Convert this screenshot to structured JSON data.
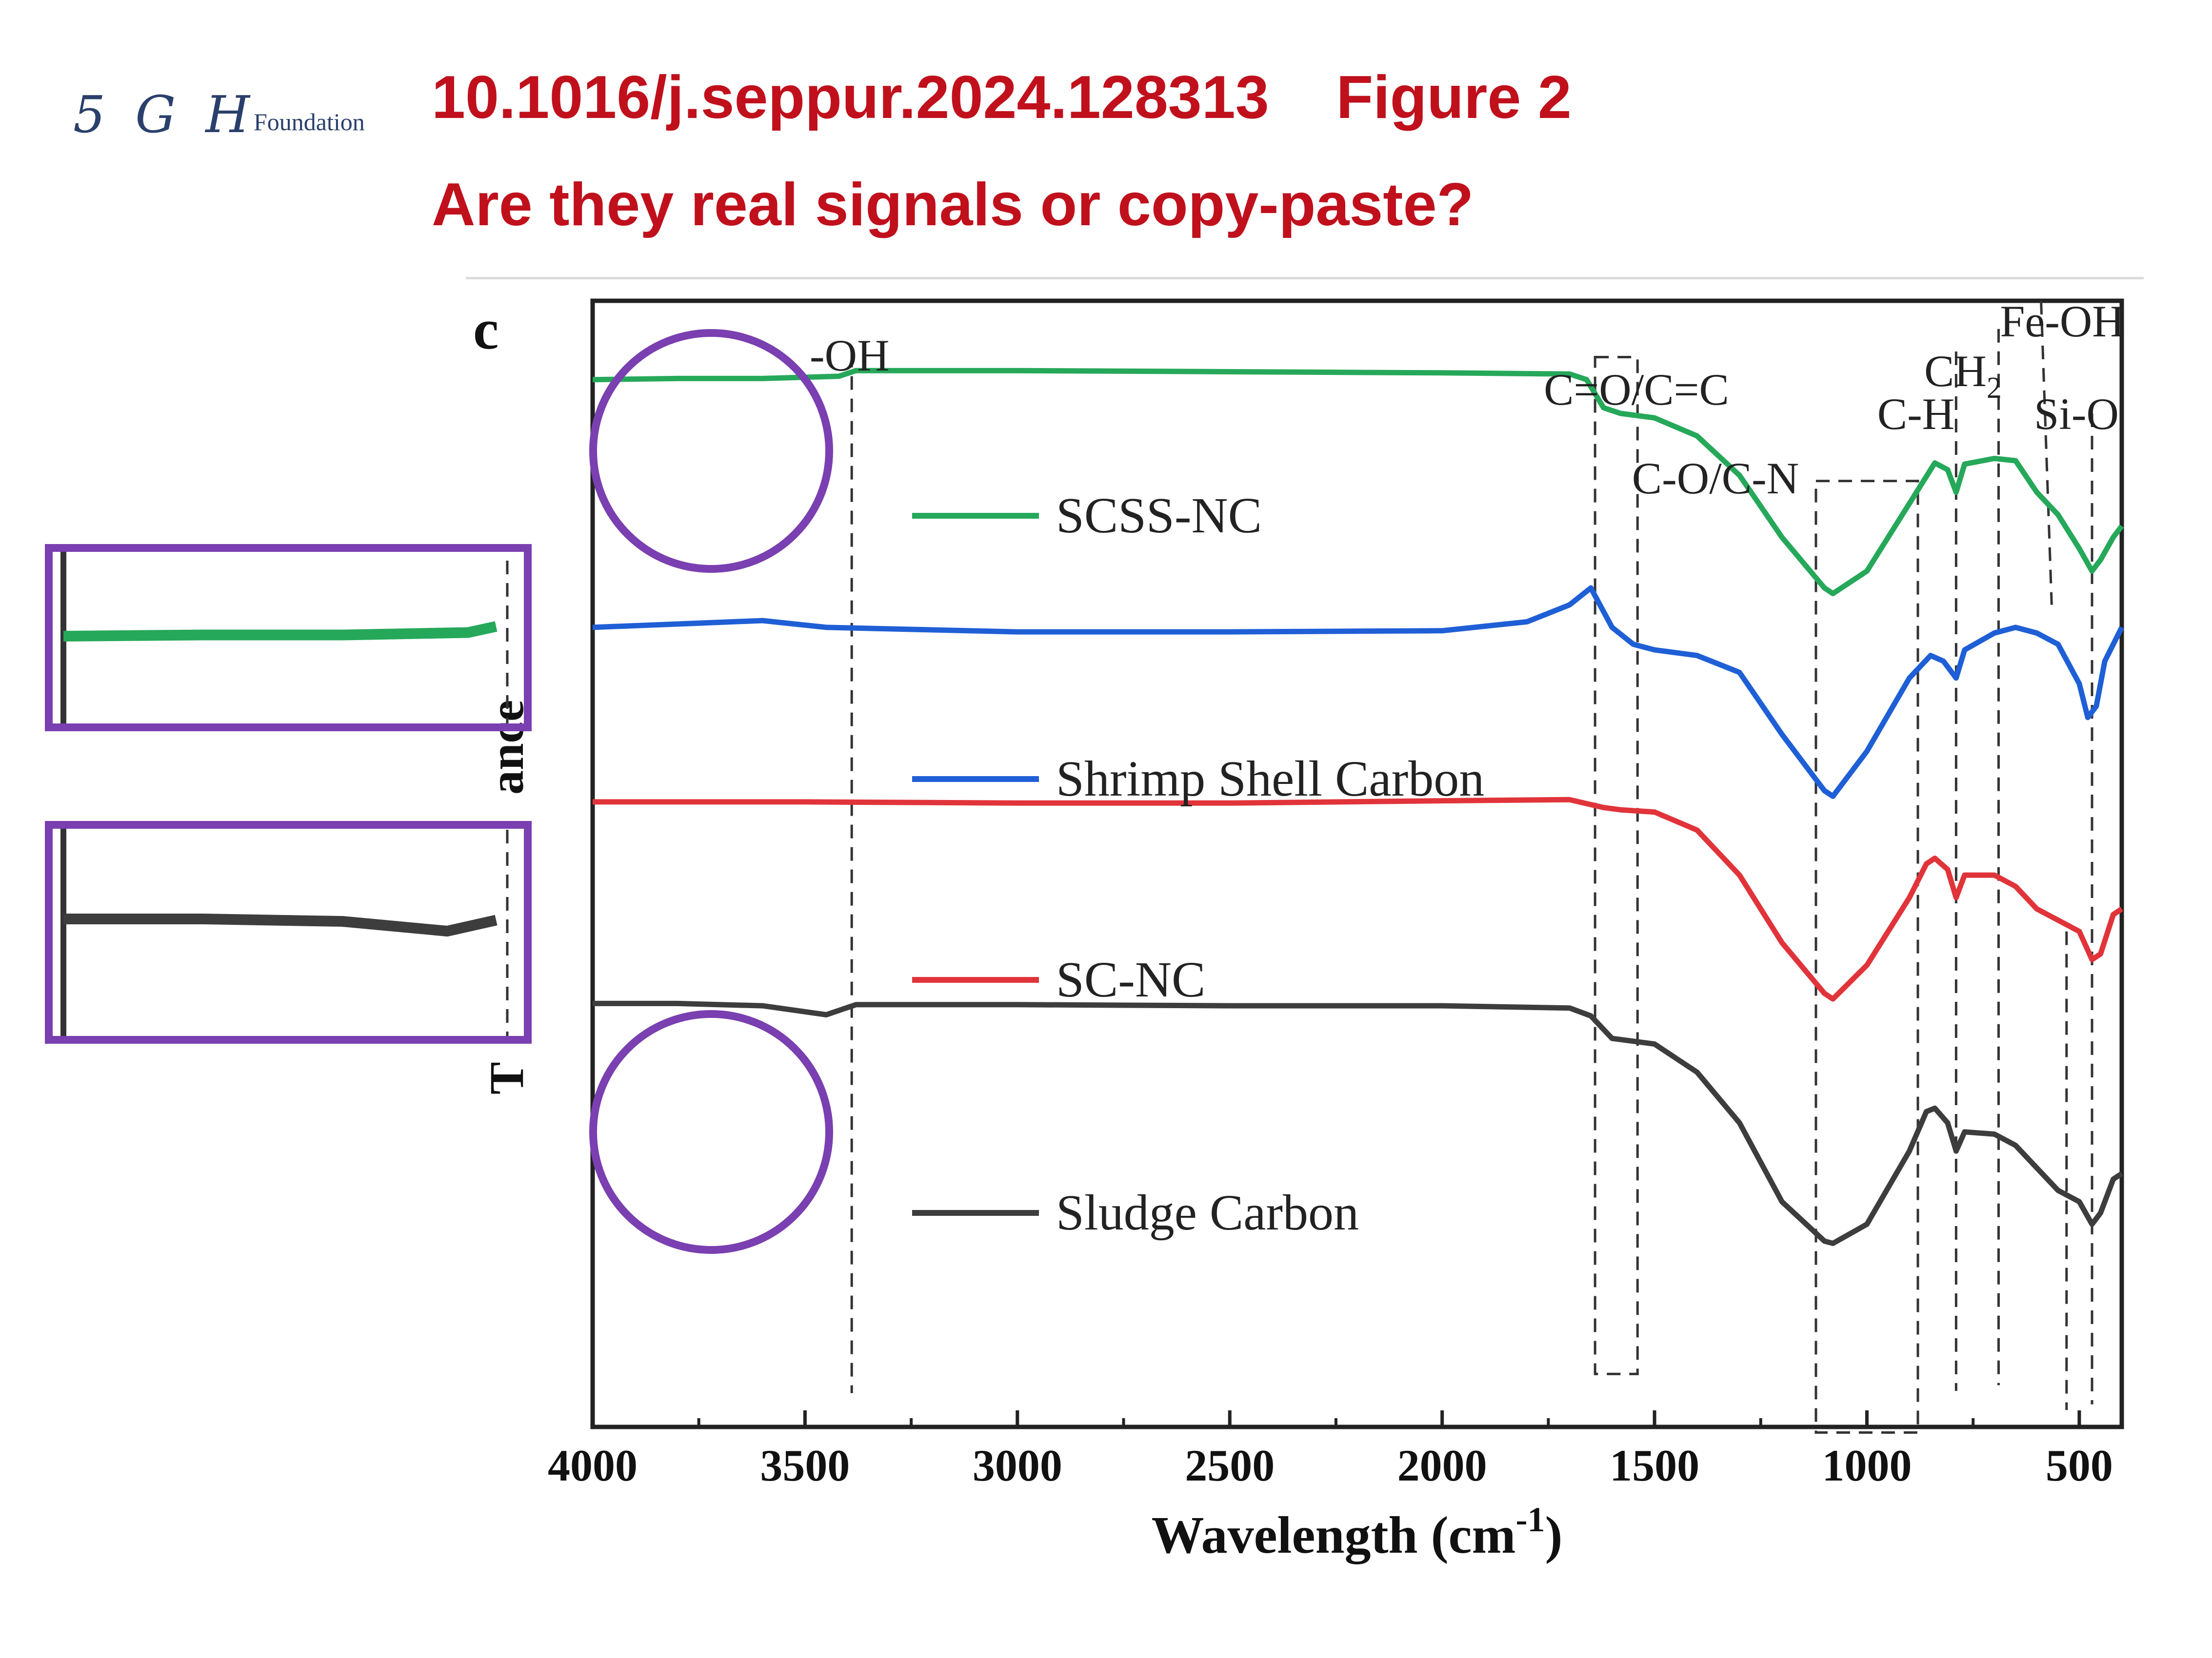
{
  "header": {
    "logo_text": "5 G H",
    "logo_subtext": "Foundation",
    "doi_line": "10.1016/j.seppur.2024.128313    Figure 2",
    "question": "Are they real signals or copy-paste?",
    "accent_color": "#c0101c"
  },
  "chart_data": {
    "type": "line",
    "panel_label": "c",
    "xlabel": "Wavelength (cm",
    "xlabel_sup": "-1",
    "xlabel_close": ")",
    "ylabel_visible": "T",
    "ylabel_fragment": "ance",
    "xlim": [
      4000,
      400
    ],
    "xticks": [
      4000,
      3500,
      3000,
      2500,
      2000,
      1500,
      1000,
      500
    ],
    "series": [
      {
        "name": "SCSS-NC",
        "color": "#26a85a",
        "points": [
          [
            4000,
            0.93
          ],
          [
            3800,
            0.931
          ],
          [
            3600,
            0.931
          ],
          [
            3420,
            0.933
          ],
          [
            3380,
            0.938
          ],
          [
            3000,
            0.938
          ],
          [
            2500,
            0.937
          ],
          [
            2000,
            0.936
          ],
          [
            1700,
            0.935
          ],
          [
            1660,
            0.93
          ],
          [
            1620,
            0.905
          ],
          [
            1580,
            0.9
          ],
          [
            1500,
            0.896
          ],
          [
            1400,
            0.88
          ],
          [
            1300,
            0.845
          ],
          [
            1200,
            0.79
          ],
          [
            1100,
            0.745
          ],
          [
            1080,
            0.74
          ],
          [
            1000,
            0.76
          ],
          [
            900,
            0.82
          ],
          [
            840,
            0.856
          ],
          [
            810,
            0.85
          ],
          [
            790,
            0.83
          ],
          [
            770,
            0.855
          ],
          [
            700,
            0.86
          ],
          [
            650,
            0.858
          ],
          [
            600,
            0.83
          ],
          [
            550,
            0.81
          ],
          [
            500,
            0.78
          ],
          [
            470,
            0.76
          ],
          [
            450,
            0.77
          ],
          [
            420,
            0.79
          ],
          [
            400,
            0.8
          ]
        ]
      },
      {
        "name": "Shrimp Shell Carbon",
        "color": "#1f5fd6",
        "points": [
          [
            4000,
            0.71
          ],
          [
            3800,
            0.713
          ],
          [
            3600,
            0.716
          ],
          [
            3450,
            0.71
          ],
          [
            3000,
            0.706
          ],
          [
            2500,
            0.706
          ],
          [
            2000,
            0.707
          ],
          [
            1800,
            0.715
          ],
          [
            1700,
            0.73
          ],
          [
            1650,
            0.745
          ],
          [
            1600,
            0.71
          ],
          [
            1550,
            0.695
          ],
          [
            1500,
            0.69
          ],
          [
            1400,
            0.685
          ],
          [
            1300,
            0.67
          ],
          [
            1200,
            0.615
          ],
          [
            1100,
            0.565
          ],
          [
            1080,
            0.56
          ],
          [
            1000,
            0.6
          ],
          [
            900,
            0.665
          ],
          [
            850,
            0.685
          ],
          [
            820,
            0.68
          ],
          [
            790,
            0.665
          ],
          [
            770,
            0.69
          ],
          [
            700,
            0.705
          ],
          [
            650,
            0.71
          ],
          [
            600,
            0.705
          ],
          [
            550,
            0.695
          ],
          [
            500,
            0.66
          ],
          [
            480,
            0.63
          ],
          [
            460,
            0.64
          ],
          [
            440,
            0.68
          ],
          [
            400,
            0.71
          ]
        ]
      },
      {
        "name": "SC-NC",
        "color": "#e0343a",
        "points": [
          [
            4000,
            0.555
          ],
          [
            3500,
            0.555
          ],
          [
            3000,
            0.554
          ],
          [
            2500,
            0.554
          ],
          [
            2000,
            0.556
          ],
          [
            1700,
            0.557
          ],
          [
            1620,
            0.55
          ],
          [
            1580,
            0.548
          ],
          [
            1500,
            0.546
          ],
          [
            1400,
            0.53
          ],
          [
            1300,
            0.49
          ],
          [
            1200,
            0.43
          ],
          [
            1100,
            0.385
          ],
          [
            1080,
            0.38
          ],
          [
            1000,
            0.41
          ],
          [
            900,
            0.47
          ],
          [
            860,
            0.5
          ],
          [
            840,
            0.505
          ],
          [
            810,
            0.495
          ],
          [
            790,
            0.47
          ],
          [
            770,
            0.49
          ],
          [
            700,
            0.49
          ],
          [
            650,
            0.48
          ],
          [
            600,
            0.46
          ],
          [
            550,
            0.45
          ],
          [
            500,
            0.44
          ],
          [
            470,
            0.415
          ],
          [
            450,
            0.42
          ],
          [
            420,
            0.455
          ],
          [
            400,
            0.46
          ]
        ]
      },
      {
        "name": "Sludge Carbon",
        "color": "#3d3d3d",
        "points": [
          [
            4000,
            0.376
          ],
          [
            3800,
            0.376
          ],
          [
            3600,
            0.374
          ],
          [
            3450,
            0.366
          ],
          [
            3380,
            0.375
          ],
          [
            3000,
            0.375
          ],
          [
            2500,
            0.374
          ],
          [
            2000,
            0.374
          ],
          [
            1700,
            0.372
          ],
          [
            1650,
            0.365
          ],
          [
            1600,
            0.345
          ],
          [
            1500,
            0.34
          ],
          [
            1400,
            0.315
          ],
          [
            1300,
            0.27
          ],
          [
            1200,
            0.2
          ],
          [
            1100,
            0.165
          ],
          [
            1080,
            0.163
          ],
          [
            1000,
            0.18
          ],
          [
            900,
            0.245
          ],
          [
            860,
            0.28
          ],
          [
            840,
            0.283
          ],
          [
            810,
            0.27
          ],
          [
            790,
            0.245
          ],
          [
            770,
            0.262
          ],
          [
            700,
            0.26
          ],
          [
            650,
            0.25
          ],
          [
            600,
            0.23
          ],
          [
            550,
            0.21
          ],
          [
            500,
            0.2
          ],
          [
            470,
            0.18
          ],
          [
            450,
            0.19
          ],
          [
            420,
            0.22
          ],
          [
            400,
            0.225
          ]
        ]
      }
    ],
    "annotations": [
      {
        "text": "-OH",
        "x": 3390
      },
      {
        "text": "C=O/C=C",
        "x_range": [
          1640,
          1540
        ]
      },
      {
        "text": "C-O/C-N",
        "x_range": [
          1120,
          880
        ]
      },
      {
        "text": "C-H",
        "x": 790
      },
      {
        "text": "CH",
        "sub": "2",
        "x": 690
      },
      {
        "text": "Fe-OH",
        "x": 565
      },
      {
        "text": "Si-O",
        "x": 470
      }
    ],
    "legend_placement": "inline next to each trace",
    "grid": false
  },
  "insets": [
    {
      "series": "SCSS-NC",
      "box_color": "#7a3fb0"
    },
    {
      "series": "Sludge Carbon",
      "box_color": "#7a3fb0"
    }
  ],
  "highlight_circles": {
    "color": "#7a3fb0",
    "count": 2
  }
}
